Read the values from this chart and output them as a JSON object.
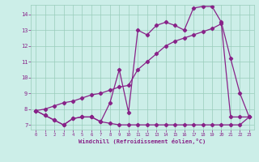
{
  "xlabel": "Windchill (Refroidissement éolien,°C)",
  "bg_color": "#cceee8",
  "grid_color": "#99ccbb",
  "line_color": "#882288",
  "x": [
    0,
    1,
    2,
    3,
    4,
    5,
    6,
    7,
    8,
    9,
    10,
    11,
    12,
    13,
    14,
    15,
    16,
    17,
    18,
    19,
    20,
    21,
    22,
    23
  ],
  "line1_y": [
    7.9,
    7.6,
    7.3,
    7.0,
    7.4,
    7.5,
    7.5,
    7.2,
    7.1,
    7.0,
    7.0,
    7.0,
    7.0,
    7.0,
    7.0,
    7.0,
    7.0,
    7.0,
    7.0,
    7.0,
    7.0,
    7.0,
    7.0,
    7.5
  ],
  "line2_y": [
    7.9,
    7.6,
    7.3,
    7.0,
    7.4,
    7.5,
    7.5,
    7.2,
    8.4,
    10.5,
    7.8,
    13.0,
    12.7,
    13.3,
    13.5,
    13.3,
    13.0,
    14.4,
    14.5,
    14.5,
    13.5,
    11.2,
    9.0,
    7.5
  ],
  "line3_y": [
    7.9,
    8.0,
    8.2,
    8.4,
    8.5,
    8.7,
    8.9,
    9.0,
    9.2,
    9.4,
    9.5,
    10.5,
    11.0,
    11.5,
    12.0,
    12.3,
    12.5,
    12.7,
    12.9,
    13.1,
    13.4,
    7.5,
    7.5,
    7.5
  ],
  "ylim": [
    6.7,
    14.6
  ],
  "xlim": [
    -0.5,
    23.5
  ],
  "yticks": [
    7,
    8,
    9,
    10,
    11,
    12,
    13,
    14
  ],
  "xticks": [
    0,
    1,
    2,
    3,
    4,
    5,
    6,
    7,
    8,
    9,
    10,
    11,
    12,
    13,
    14,
    15,
    16,
    17,
    18,
    19,
    20,
    21,
    22,
    23
  ]
}
